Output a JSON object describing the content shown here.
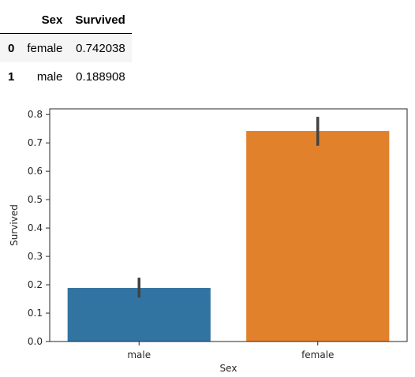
{
  "table": {
    "columns": [
      "Sex",
      "Survived"
    ],
    "rows": [
      {
        "index": "0",
        "Sex": "female",
        "Survived": "0.742038"
      },
      {
        "index": "1",
        "Sex": "male",
        "Survived": "0.188908"
      }
    ]
  },
  "chart_data": {
    "type": "bar",
    "categories": [
      "male",
      "female"
    ],
    "values": [
      0.188908,
      0.742038
    ],
    "error_bars": [
      [
        0.155,
        0.225
      ],
      [
        0.69,
        0.792
      ]
    ],
    "colors": [
      "#3274a1",
      "#e1812c"
    ],
    "xlabel": "Sex",
    "ylabel": "Survived",
    "ylim": [
      0,
      0.82
    ],
    "yticks": [
      0.0,
      0.1,
      0.2,
      0.3,
      0.4,
      0.5,
      0.6,
      0.7,
      0.8
    ],
    "ytick_labels": [
      "0.0",
      "0.1",
      "0.2",
      "0.3",
      "0.4",
      "0.5",
      "0.6",
      "0.7",
      "0.8"
    ],
    "grid": false,
    "legend": "none"
  }
}
